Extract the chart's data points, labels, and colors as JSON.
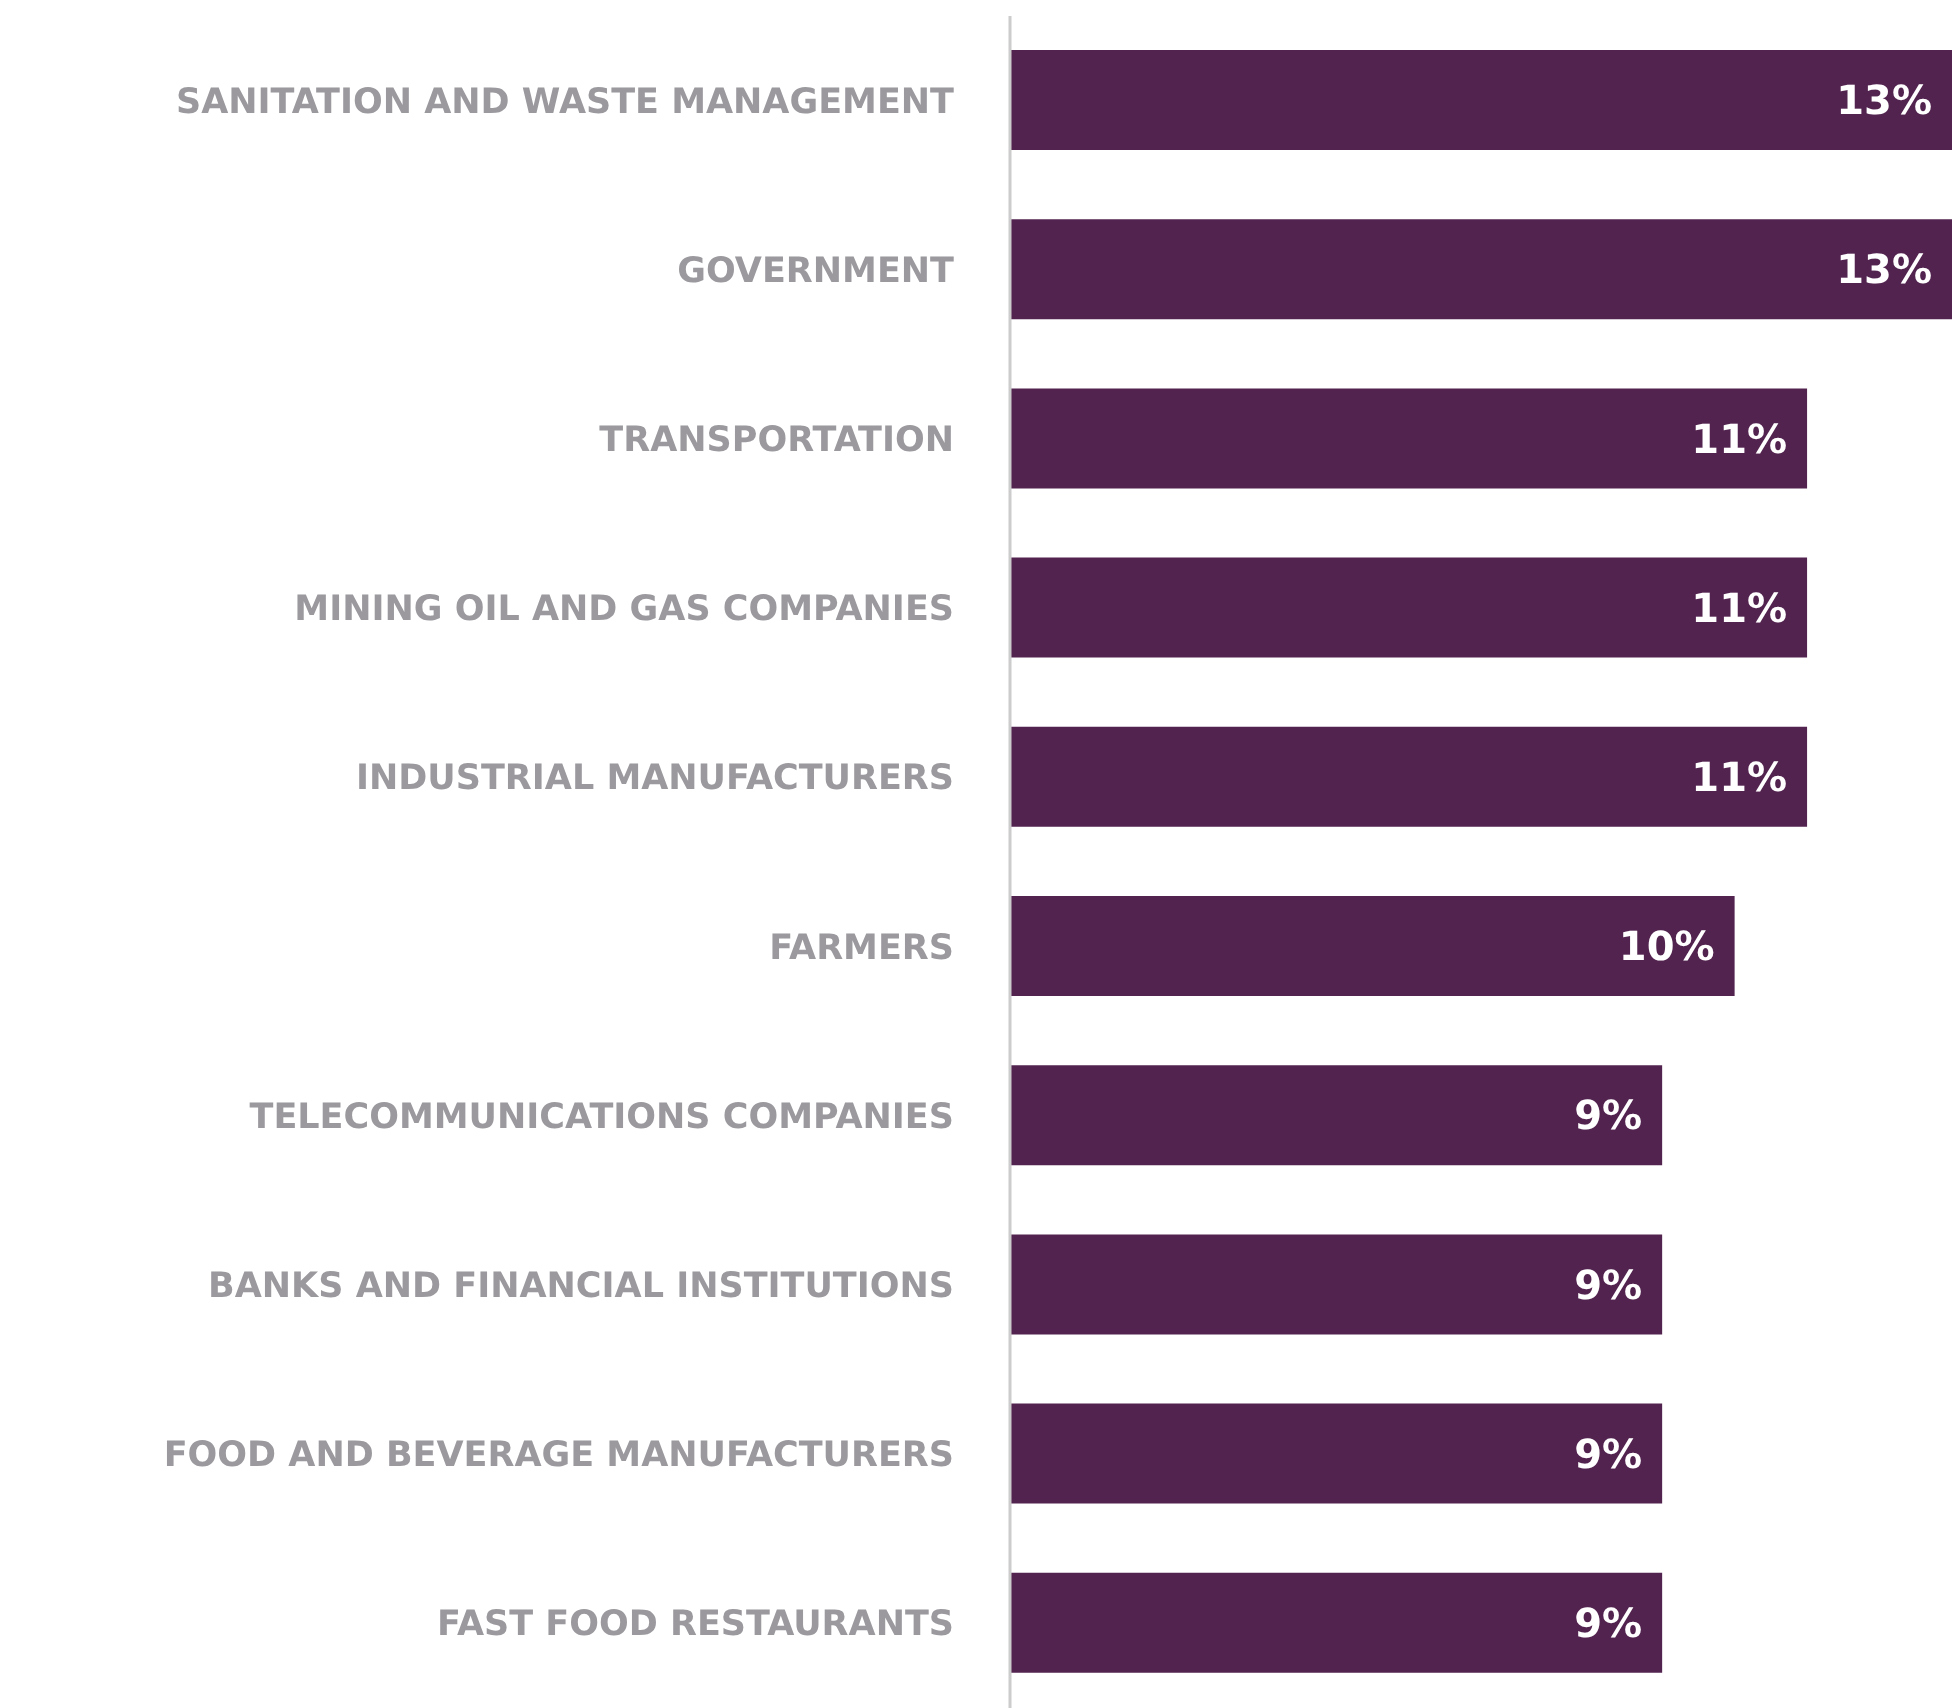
{
  "chart_data": {
    "type": "bar",
    "orientation": "horizontal",
    "categories": [
      "SANITATION AND WASTE MANAGEMENT",
      "GOVERNMENT",
      "TRANSPORTATION",
      "MINING OIL AND GAS COMPANIES",
      "INDUSTRIAL MANUFACTURERS",
      "FARMERS",
      "TELECOMMUNICATIONS COMPANIES",
      "BANKS AND FINANCIAL INSTITUTIONS",
      "FOOD AND BEVERAGE MANUFACTURERS",
      "FAST FOOD RESTAURANTS"
    ],
    "values": [
      13,
      13,
      11,
      11,
      11,
      10,
      9,
      9,
      9,
      9
    ],
    "value_labels": [
      "13%",
      "13%",
      "11%",
      "11%",
      "11%",
      "10%",
      "9%",
      "9%",
      "9%",
      "9%"
    ],
    "color": "#52234f",
    "tick_labels": "y"
  }
}
